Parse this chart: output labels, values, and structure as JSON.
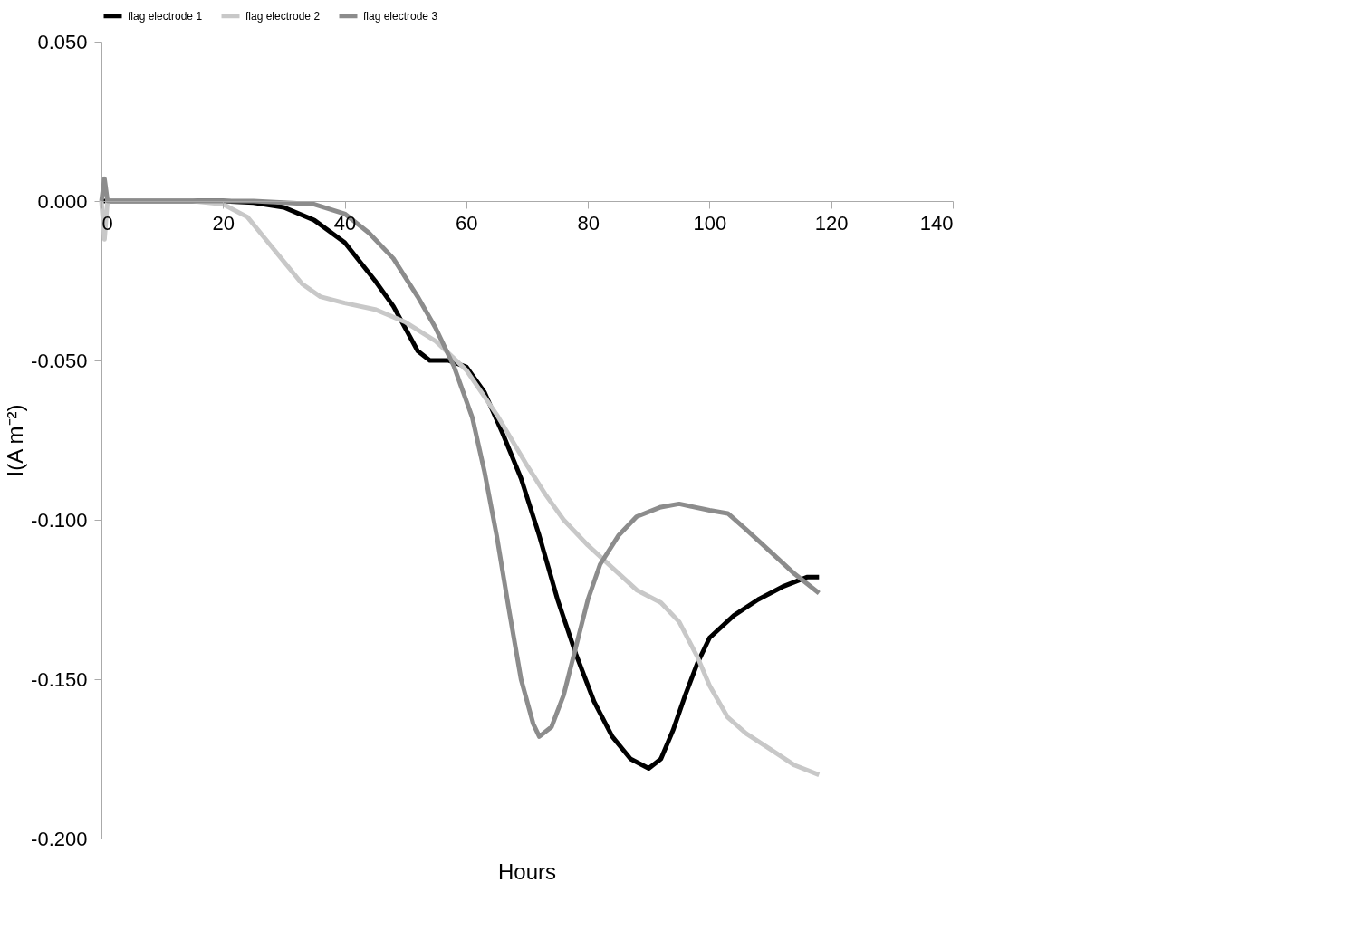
{
  "chart_data": {
    "type": "line",
    "xlabel": "Hours",
    "ylabel": "I(A m⁻²)",
    "xlim": [
      0,
      140
    ],
    "xticks": [
      0,
      20,
      40,
      60,
      80,
      100,
      120,
      140
    ],
    "ylim": [
      -0.2,
      0.05
    ],
    "yticks": [
      {
        "value": 0.05,
        "label": "0.050"
      },
      {
        "value": 0,
        "label": "0.000"
      },
      {
        "value": -0.05,
        "label": "-0.050"
      },
      {
        "value": -0.1,
        "label": "-0.100"
      },
      {
        "value": -0.15,
        "label": "-0.150"
      },
      {
        "value": -0.2,
        "label": "-0.200"
      }
    ],
    "grid": false,
    "legend": "top",
    "marker": "none",
    "line_style": "solid",
    "series": [
      {
        "name": "flag electrode 1",
        "color": "#000000",
        "x": [
          0,
          20,
          25,
          30,
          35,
          40,
          45,
          48,
          50,
          52,
          54,
          57,
          60,
          63,
          66,
          69,
          72,
          75,
          78,
          81,
          84,
          87,
          90,
          92,
          94,
          96,
          98,
          100,
          104,
          108,
          112,
          116,
          118
        ],
        "values": [
          0,
          0,
          -0.0005,
          -0.002,
          -0.006,
          -0.013,
          -0.025,
          -0.033,
          -0.04,
          -0.047,
          -0.05,
          -0.05,
          -0.052,
          -0.06,
          -0.073,
          -0.087,
          -0.105,
          -0.125,
          -0.142,
          -0.157,
          -0.168,
          -0.175,
          -0.178,
          -0.175,
          -0.166,
          -0.155,
          -0.145,
          -0.137,
          -0.13,
          -0.125,
          -0.121,
          -0.118,
          -0.118
        ]
      },
      {
        "name": "flag electrode 2",
        "color": "#c8c8c8",
        "x": [
          0,
          0.5,
          1,
          15,
          20,
          24,
          27,
          30,
          33,
          36,
          40,
          45,
          50,
          55,
          60,
          65,
          70,
          73,
          76,
          80,
          84,
          88,
          92,
          95,
          98,
          100,
          103,
          106,
          110,
          114,
          118
        ],
        "values": [
          0,
          -0.012,
          0,
          0,
          -0.001,
          -0.005,
          -0.012,
          -0.019,
          -0.026,
          -0.03,
          -0.032,
          -0.034,
          -0.038,
          -0.044,
          -0.053,
          -0.067,
          -0.083,
          -0.092,
          -0.1,
          -0.108,
          -0.115,
          -0.122,
          -0.126,
          -0.132,
          -0.143,
          -0.152,
          -0.162,
          -0.167,
          -0.172,
          -0.177,
          -0.18
        ]
      },
      {
        "name": "flag electrode 3",
        "color": "#8c8c8c",
        "x": [
          0,
          0.5,
          1,
          25,
          30,
          35,
          40,
          44,
          48,
          52,
          55,
          58,
          61,
          63,
          65,
          67,
          69,
          71,
          72,
          74,
          76,
          78,
          80,
          82,
          85,
          88,
          92,
          95,
          100,
          103,
          106,
          110,
          114,
          118
        ],
        "values": [
          0,
          0.007,
          0,
          0,
          -0.0005,
          -0.001,
          -0.004,
          -0.01,
          -0.018,
          -0.03,
          -0.04,
          -0.052,
          -0.068,
          -0.085,
          -0.105,
          -0.128,
          -0.15,
          -0.164,
          -0.168,
          -0.165,
          -0.155,
          -0.14,
          -0.125,
          -0.114,
          -0.105,
          -0.099,
          -0.096,
          -0.095,
          -0.097,
          -0.098,
          -0.103,
          -0.11,
          -0.117,
          -0.123
        ]
      }
    ]
  }
}
